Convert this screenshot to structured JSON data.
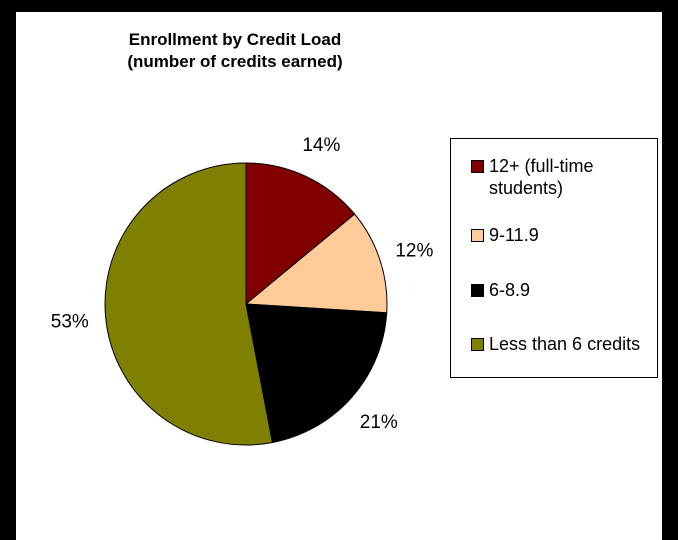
{
  "chart_data": {
    "type": "pie",
    "title": "Enrollment by Credit Load",
    "subtitle": "(number of credits earned)",
    "slices": [
      {
        "label": "12+ (full-time students)",
        "legend_text": "12+ (full-time\nstudents)",
        "value": 14,
        "display": "14%",
        "color": "#800000"
      },
      {
        "label": "9-11.9",
        "legend_text": "9-11.9",
        "value": 12,
        "display": "12%",
        "color": "#FFCC99"
      },
      {
        "label": "6-8.9",
        "legend_text": "6-8.9",
        "value": 21,
        "display": "21%",
        "color": "#000000"
      },
      {
        "label": "Less than 6 credits",
        "legend_text": "Less than 6 credits",
        "value": 53,
        "display": "53%",
        "color": "#808000"
      }
    ],
    "legend_placement": "right"
  }
}
